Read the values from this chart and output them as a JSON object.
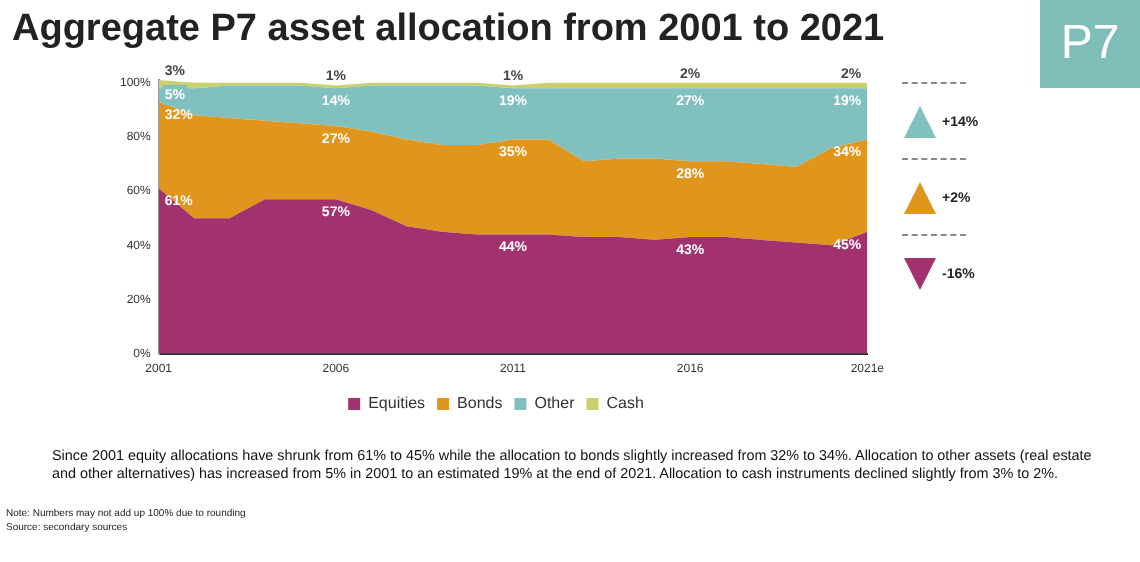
{
  "chart_data": {
    "type": "area",
    "title": "Aggregate P7 asset allocation from 2001 to 2021",
    "stacked": true,
    "categories": [
      "2001",
      null,
      null,
      null,
      null,
      "2006",
      null,
      null,
      null,
      null,
      "2011",
      null,
      null,
      null,
      null,
      "2016",
      null,
      null,
      null,
      null,
      "2021e"
    ],
    "series": [
      {
        "name": "Equities",
        "color": "#a2326e",
        "values": [
          61,
          50,
          50,
          57,
          57,
          57,
          53,
          47,
          45,
          44,
          44,
          44,
          43,
          43,
          42,
          43,
          43,
          42,
          41,
          40,
          45
        ],
        "value_labels": [
          "61%",
          null,
          null,
          null,
          null,
          "57%",
          null,
          null,
          null,
          null,
          "44%",
          null,
          null,
          null,
          null,
          "43%",
          null,
          null,
          null,
          null,
          "45%"
        ]
      },
      {
        "name": "Bonds",
        "color": "#e0951c",
        "values": [
          32,
          38,
          37,
          29,
          28,
          27,
          29,
          32,
          32,
          33,
          35,
          35,
          28,
          29,
          30,
          28,
          28,
          28,
          28,
          36,
          34
        ],
        "value_labels": [
          "32%",
          null,
          null,
          null,
          null,
          "27%",
          null,
          null,
          null,
          null,
          "35%",
          null,
          null,
          null,
          null,
          "28%",
          null,
          null,
          null,
          null,
          "34%"
        ]
      },
      {
        "name": "Other",
        "color": "#80c0be",
        "values": [
          5,
          10,
          12,
          13,
          14,
          14,
          17,
          20,
          22,
          22,
          19,
          19,
          27,
          26,
          26,
          27,
          27,
          28,
          29,
          22,
          19
        ],
        "value_labels": [
          "5%",
          null,
          null,
          null,
          null,
          "14%",
          null,
          null,
          null,
          null,
          "19%",
          null,
          null,
          null,
          null,
          "27%",
          null,
          null,
          null,
          null,
          "19%"
        ]
      },
      {
        "name": "Cash",
        "color": "#cbcf6c",
        "values": [
          3,
          2,
          1,
          1,
          1,
          1,
          1,
          1,
          1,
          1,
          1,
          2,
          2,
          2,
          2,
          2,
          2,
          2,
          2,
          2,
          2
        ],
        "value_labels": [
          "3%",
          null,
          null,
          null,
          null,
          "1%",
          null,
          null,
          null,
          null,
          "1%",
          null,
          null,
          null,
          null,
          "2%",
          null,
          null,
          null,
          null,
          "2%"
        ]
      }
    ],
    "ylim": [
      0,
      101
    ],
    "yticks": [
      {
        "value": 0,
        "label": "0%"
      },
      {
        "value": 20,
        "label": "20%"
      },
      {
        "value": 40,
        "label": "40%"
      },
      {
        "value": 60,
        "label": "60%"
      },
      {
        "value": 80,
        "label": "80%"
      },
      {
        "value": 100,
        "label": "100%"
      }
    ],
    "grid": false,
    "legend": "bottom",
    "annotations": [
      "P7",
      "+14%",
      "+2%",
      "-16%",
      "Since 2001 equity allocations have shrunk from 61% to 45% while the allocation to bonds slightly increased from 32% to 34%. Allocation to other assets (real estate and other alternatives) has increased from 5% in 2001 to an estimated 19% at the end of 2021. Allocation to cash instruments declined slightly from 3% to 2%.",
      "Note: Numbers may not add up 100% due to rounding",
      "Source: secondary sources"
    ]
  }
}
